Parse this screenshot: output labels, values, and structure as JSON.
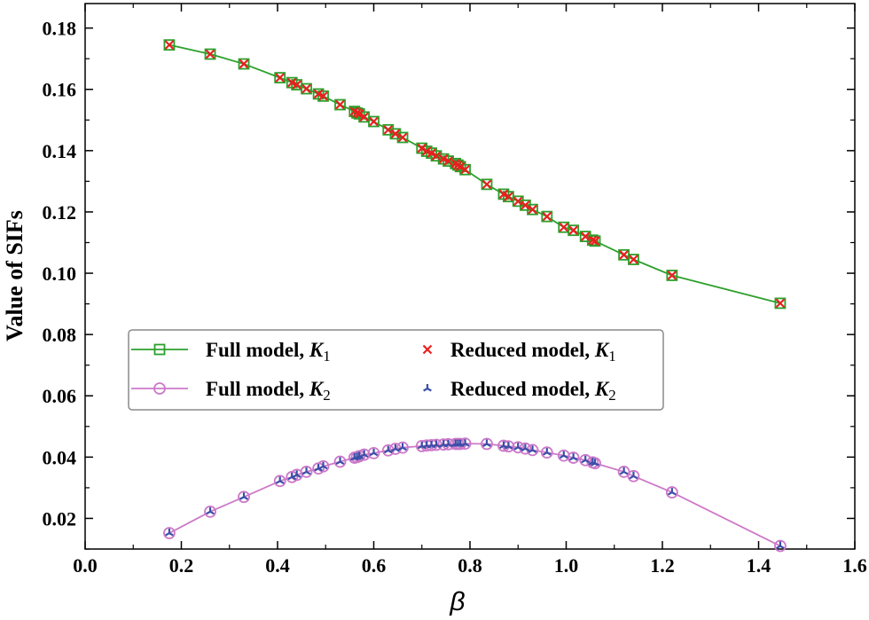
{
  "chart_data": {
    "type": "line",
    "title": "",
    "xlabel": "β",
    "ylabel": "Value of SIFs",
    "xlim": [
      0.0,
      1.6
    ],
    "ylim": [
      0.01,
      0.188
    ],
    "xticks": [
      "0.0",
      "0.2",
      "0.4",
      "0.6",
      "0.8",
      "1.0",
      "1.2",
      "1.4",
      "1.6"
    ],
    "yticks": [
      "0.02",
      "0.04",
      "0.06",
      "0.08",
      "0.10",
      "0.12",
      "0.14",
      "0.16",
      "0.18"
    ],
    "legend_position": "center-left",
    "x": [
      0.175,
      0.26,
      0.33,
      0.405,
      0.43,
      0.44,
      0.46,
      0.485,
      0.495,
      0.53,
      0.56,
      0.565,
      0.57,
      0.58,
      0.6,
      0.63,
      0.645,
      0.66,
      0.7,
      0.71,
      0.72,
      0.73,
      0.745,
      0.755,
      0.77,
      0.775,
      0.78,
      0.79,
      0.835,
      0.87,
      0.88,
      0.9,
      0.915,
      0.93,
      0.96,
      0.995,
      1.015,
      1.04,
      1.055,
      1.06,
      1.12,
      1.14,
      1.22,
      1.445
    ],
    "series": [
      {
        "name": "Full model, K1",
        "label": "Full model,",
        "sym": "K",
        "sub": "1",
        "color": "#2ca02c",
        "marker": "square",
        "values": [
          0.1745,
          0.1715,
          0.1683,
          0.1638,
          0.1622,
          0.1615,
          0.1602,
          0.1585,
          0.1578,
          0.155,
          0.1528,
          0.1523,
          0.152,
          0.151,
          0.1495,
          0.1468,
          0.1455,
          0.1443,
          0.1408,
          0.1398,
          0.1392,
          0.1383,
          0.1373,
          0.1366,
          0.1358,
          0.1353,
          0.1348,
          0.1338,
          0.129,
          0.1258,
          0.125,
          0.1235,
          0.1222,
          0.1208,
          0.1185,
          0.115,
          0.114,
          0.112,
          0.1108,
          0.1105,
          0.106,
          0.1045,
          0.0993,
          0.0902
        ]
      },
      {
        "name": "Full model, K2",
        "label": "Full model,",
        "sym": "K",
        "sub": "2",
        "color": "#cc79c9",
        "marker": "circle",
        "values": [
          0.0152,
          0.0222,
          0.027,
          0.0322,
          0.0335,
          0.0342,
          0.0352,
          0.0363,
          0.037,
          0.0385,
          0.0398,
          0.04,
          0.0403,
          0.0408,
          0.0413,
          0.0422,
          0.0427,
          0.0431,
          0.0436,
          0.0438,
          0.0439,
          0.044,
          0.0441,
          0.0442,
          0.0443,
          0.0443,
          0.0443,
          0.0444,
          0.0443,
          0.0437,
          0.0435,
          0.0432,
          0.0428,
          0.0423,
          0.0415,
          0.0405,
          0.0398,
          0.039,
          0.0383,
          0.038,
          0.0352,
          0.0338,
          0.0285,
          0.011
        ]
      },
      {
        "name": "Reduced model, K1",
        "label": "Reduced model,",
        "sym": "K",
        "sub": "1",
        "color": "#e8201e",
        "marker": "x",
        "values": [
          0.1745,
          0.1715,
          0.1683,
          0.1638,
          0.1622,
          0.1615,
          0.1602,
          0.1585,
          0.1578,
          0.155,
          0.1528,
          0.1523,
          0.152,
          0.151,
          0.1495,
          0.1468,
          0.1455,
          0.1443,
          0.1408,
          0.1398,
          0.1392,
          0.1383,
          0.1373,
          0.1366,
          0.1358,
          0.1353,
          0.1348,
          0.1338,
          0.129,
          0.1258,
          0.125,
          0.1235,
          0.1222,
          0.1208,
          0.1185,
          0.115,
          0.114,
          0.112,
          0.1108,
          0.1105,
          0.106,
          0.1045,
          0.0993,
          0.0902
        ]
      },
      {
        "name": "Reduced model, K2",
        "label": "Reduced model,",
        "sym": "K",
        "sub": "2",
        "color": "#3a4fa8",
        "marker": "tri",
        "values": [
          0.0152,
          0.0222,
          0.027,
          0.0322,
          0.0335,
          0.0342,
          0.0352,
          0.0363,
          0.037,
          0.0385,
          0.0398,
          0.04,
          0.0403,
          0.0408,
          0.0413,
          0.0422,
          0.0427,
          0.0431,
          0.0436,
          0.0438,
          0.0439,
          0.044,
          0.0441,
          0.0442,
          0.0443,
          0.0443,
          0.0443,
          0.0444,
          0.0443,
          0.0437,
          0.0435,
          0.0432,
          0.0428,
          0.0423,
          0.0415,
          0.0405,
          0.0398,
          0.039,
          0.0383,
          0.038,
          0.0352,
          0.0338,
          0.0285,
          0.011
        ]
      }
    ]
  }
}
